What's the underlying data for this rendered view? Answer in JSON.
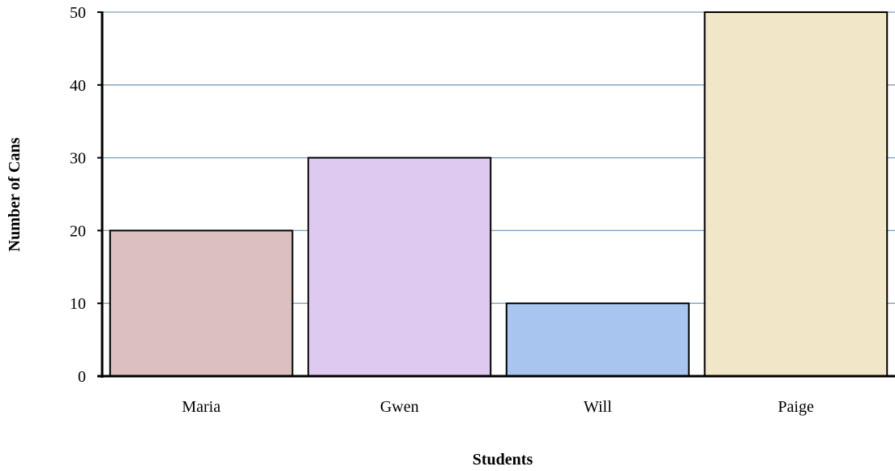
{
  "chart_data": {
    "type": "bar",
    "title": "",
    "xlabel": "Students",
    "ylabel": "Number of Cans",
    "categories": [
      "Maria",
      "Gwen",
      "Will",
      "Paige"
    ],
    "values": [
      20,
      30,
      10,
      50
    ],
    "ylim": [
      0,
      50
    ],
    "yticks": [
      0,
      10,
      20,
      30,
      40,
      50
    ],
    "grid": true,
    "legend": "none",
    "colors": {
      "bars": [
        "#dcc0c0",
        "#dec9f0",
        "#a7c5ef",
        "#f1e6c8"
      ],
      "bar_stroke": "#000000",
      "gridline": "#7f9fb4",
      "axis": "#000000"
    }
  }
}
